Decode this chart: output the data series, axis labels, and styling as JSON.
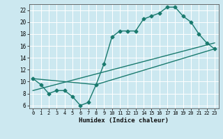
{
  "xlabel": "Humidex (Indice chaleur)",
  "xlim": [
    -0.5,
    23.5
  ],
  "ylim": [
    5.5,
    23.0
  ],
  "xticks": [
    0,
    1,
    2,
    3,
    4,
    5,
    6,
    7,
    8,
    9,
    10,
    11,
    12,
    13,
    14,
    15,
    16,
    17,
    18,
    19,
    20,
    21,
    22,
    23
  ],
  "yticks": [
    6,
    8,
    10,
    12,
    14,
    16,
    18,
    20,
    22
  ],
  "line_color": "#1a7a6e",
  "bg_color": "#cce8f0",
  "grid_color": "#ffffff",
  "series": [
    {
      "x": [
        0,
        1,
        2,
        3,
        4,
        5,
        6,
        7,
        8,
        9,
        10,
        11,
        12,
        13,
        14,
        15,
        16,
        17,
        18,
        19,
        20,
        21,
        22,
        23
      ],
      "y": [
        10.5,
        9.5,
        8.0,
        8.5,
        8.5,
        7.5,
        6.0,
        6.5,
        9.5,
        13.0,
        17.5,
        18.5,
        18.5,
        18.5,
        20.5,
        21.0,
        21.5,
        22.5,
        22.5,
        21.0,
        20.0,
        18.0,
        16.5,
        15.5
      ],
      "marker": "D",
      "marker_size": 2.5,
      "linewidth": 1.0
    },
    {
      "x": [
        0,
        8,
        23
      ],
      "y": [
        10.5,
        9.5,
        15.5
      ],
      "marker": null,
      "linewidth": 1.0
    },
    {
      "x": [
        0,
        23
      ],
      "y": [
        8.5,
        16.5
      ],
      "marker": null,
      "linewidth": 1.0
    }
  ]
}
